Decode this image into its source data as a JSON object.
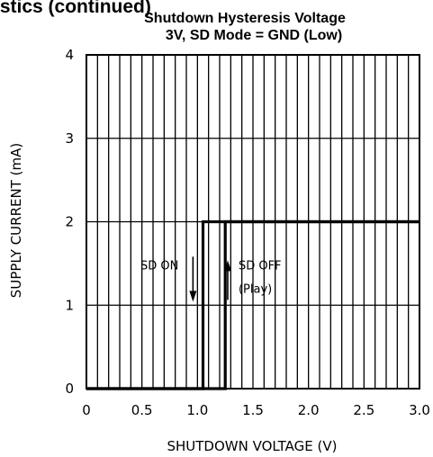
{
  "chart_data": {
    "type": "line",
    "page_heading": "istics (continued)",
    "title": "Shutdown Hysteresis Voltage",
    "subtitle": "3V, SD Mode = GND (Low)",
    "xlabel": "SHUTDOWN VOLTAGE (V)",
    "ylabel": "SUPPLY CURRENT (mA)",
    "xlim": [
      0,
      3.0
    ],
    "ylim": [
      0,
      4
    ],
    "x_ticks": [
      0,
      0.5,
      1.0,
      1.5,
      2.0,
      2.5,
      3.0
    ],
    "x_tick_labels": [
      "0",
      "0.5",
      "1.0",
      "1.5",
      "2.0",
      "2.5",
      "3.0"
    ],
    "y_ticks": [
      0,
      1,
      2,
      3,
      4
    ],
    "y_tick_labels": [
      "0",
      "1",
      "2",
      "3",
      "4"
    ],
    "x_minor_step": 0.1,
    "grid": true,
    "series": [
      {
        "x": [
          3.0,
          1.05,
          1.05,
          0
        ],
        "y": [
          2,
          2,
          0,
          0
        ]
      },
      {
        "x": [
          0,
          1.25,
          1.25,
          3.0
        ],
        "y": [
          0,
          0,
          2,
          2
        ]
      }
    ],
    "annotations": [
      {
        "label": "SD ON",
        "x": 0.83,
        "y": 1.43,
        "arrow": "down"
      },
      {
        "label": "SD OFF",
        "x": 1.37,
        "y": 1.43,
        "arrow": "up"
      },
      {
        "label": "(Play)",
        "x": 1.37,
        "y": 1.15
      }
    ]
  }
}
